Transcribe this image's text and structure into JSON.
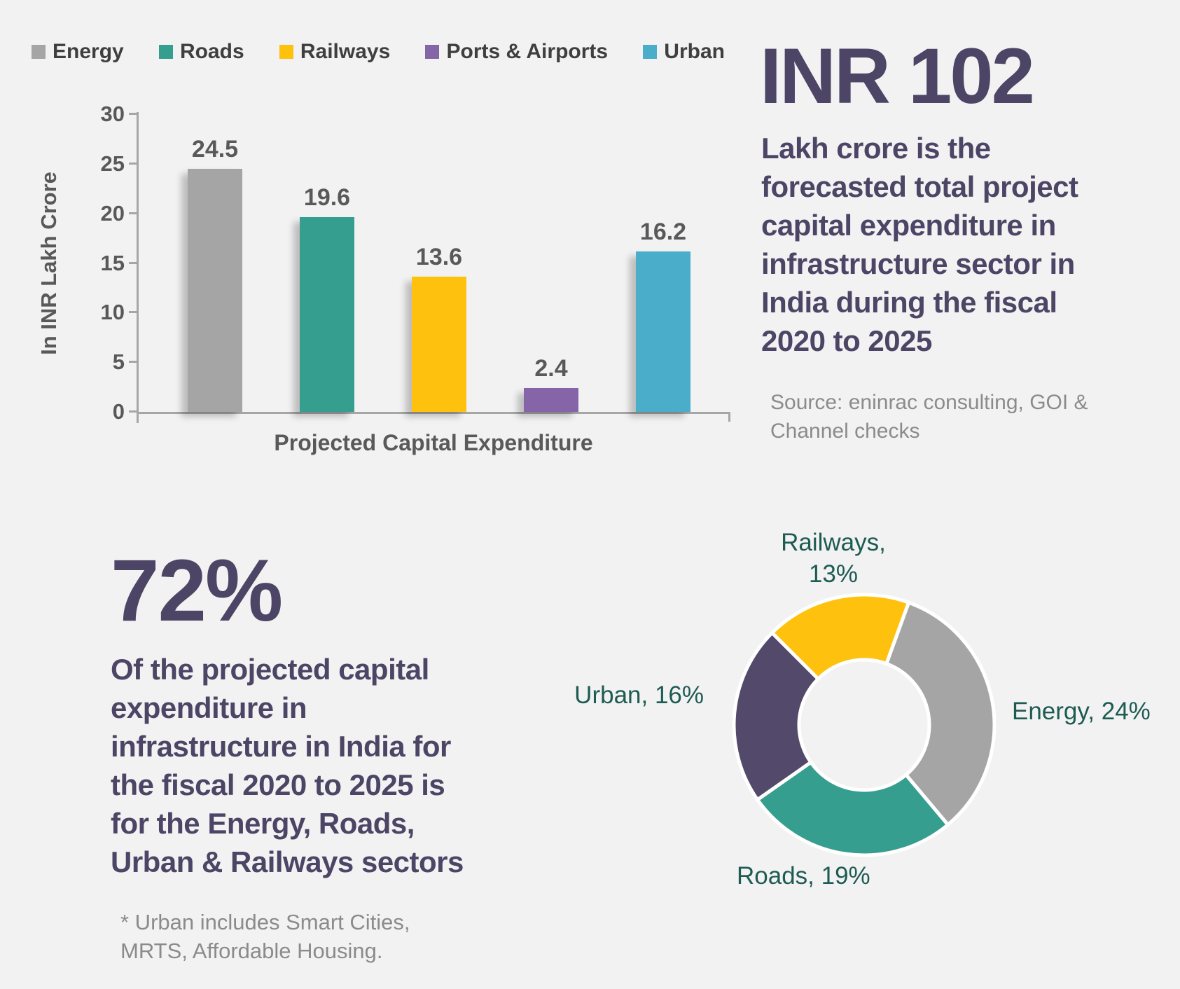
{
  "page": {
    "background": "#f2f2f2"
  },
  "bar_chart": {
    "legend": [
      {
        "label": "Energy",
        "color": "#a5a5a5"
      },
      {
        "label": "Roads",
        "color": "#359e8e"
      },
      {
        "label": "Railways",
        "color": "#fec10e"
      },
      {
        "label": "Ports & Airports",
        "color": "#8565a8"
      },
      {
        "label": "Urban",
        "color": "#4aadc9"
      }
    ],
    "y_axis_title": "In INR Lakh Crore",
    "x_axis_label": "Projected Capital Expenditure"
  },
  "chart_data": [
    {
      "type": "bar",
      "categories": [
        "Energy",
        "Roads",
        "Railways",
        "Ports & Airports",
        "Urban"
      ],
      "values": [
        24.5,
        19.6,
        13.6,
        2.4,
        16.2
      ],
      "data_labels": [
        "24.5",
        "19.6",
        "13.6",
        "2.4",
        "16.2"
      ],
      "colors": [
        "#a5a5a5",
        "#359e8e",
        "#fec10e",
        "#8565a8",
        "#4aadc9"
      ],
      "title": "Projected Capital Expenditure",
      "xlabel": "Projected Capital Expenditure",
      "ylabel": "In INR Lakh Crore",
      "ylim": [
        0,
        30
      ],
      "y_ticks": [
        30,
        25,
        20,
        15,
        10,
        5,
        0
      ],
      "legend_position": "top",
      "grid": false
    },
    {
      "type": "pie",
      "subtype": "donut",
      "labels": [
        "Railways",
        "Energy",
        "Roads",
        "Urban"
      ],
      "values": [
        13,
        24,
        19,
        16
      ],
      "percent_labels": [
        "Railways, 13%",
        "Energy, 24%",
        "Roads, 19%",
        "Urban, 16%"
      ],
      "colors": [
        "#fec10e",
        "#a5a5a5",
        "#359e8e",
        "#52496b"
      ],
      "start_angle_deg": 315,
      "hole_ratio": 0.5,
      "separator_color": "#ffffff"
    }
  ],
  "stat_top_right": {
    "headline": "INR 102",
    "body": "Lakh crore is the\nforecasted total project\ncapital expenditure in\ninfrastructure sector in\nIndia during the fiscal\n2020 to 2025",
    "source": "Source: eninrac consulting, GOI  &\nChannel checks"
  },
  "stat_bottom_left": {
    "headline": "72%",
    "body": "Of the projected capital\nexpenditure in\ninfrastructure in India for\nthe fiscal 2020 to 2025 is\nfor the Energy, Roads,\nUrban & Railways sectors",
    "footnote": "* Urban includes Smart Cities,\nMRTS, Affordable Housing."
  },
  "donut_labels": {
    "railways": "Railways,\n13%",
    "energy": "Energy, 24%",
    "roads": "Roads, 19%",
    "urban": "Urban, 16%"
  },
  "colors": {
    "headline_text": "#4c4565",
    "axis_text": "#595959",
    "legend_text": "#3f3f3f",
    "muted_text": "#8b8b8b",
    "donut_label_text": "#1d5b53",
    "axis_line": "#a6a6a6"
  }
}
